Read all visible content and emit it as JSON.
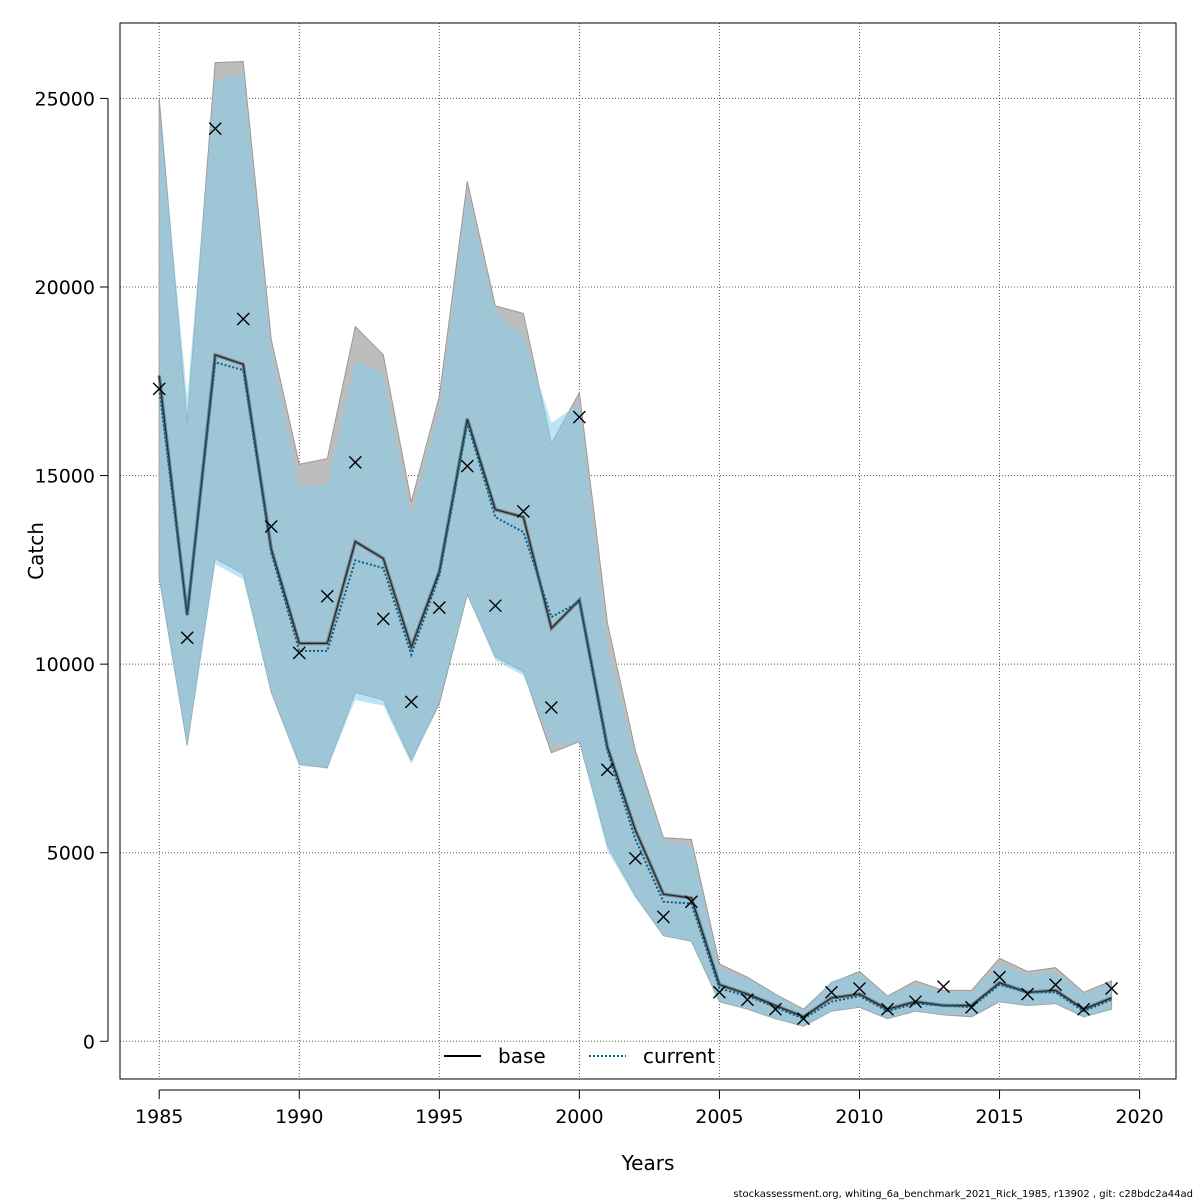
{
  "chart_data": {
    "type": "line",
    "xlabel": "Years",
    "ylabel": "Catch",
    "xlim": [
      1983.6,
      2021.3
    ],
    "ylim": [
      -1000,
      27000
    ],
    "x_ticks": [
      1985,
      1990,
      1995,
      2000,
      2005,
      2010,
      2015,
      2020
    ],
    "y_ticks": [
      0,
      5000,
      10000,
      15000,
      20000,
      25000
    ],
    "x_tick_labels": [
      "1985",
      "1990",
      "1995",
      "2000",
      "2005",
      "2010",
      "2015",
      "2020"
    ],
    "y_tick_labels": [
      "0",
      "5000",
      "10000",
      "15000",
      "20000",
      "25000"
    ],
    "grid": true,
    "legend_position": "bottom",
    "x": [
      1985,
      1986,
      1987,
      1988,
      1989,
      1990,
      1991,
      1992,
      1993,
      1994,
      1995,
      1996,
      1997,
      1998,
      1999,
      2000,
      2001,
      2002,
      2003,
      2004,
      2005,
      2006,
      2007,
      2008,
      2009,
      2010,
      2011,
      2012,
      2013,
      2014,
      2015,
      2016,
      2017,
      2018,
      2019
    ],
    "series": [
      {
        "name": "base",
        "style": "solid",
        "color": "#000000",
        "band_color": "#bdbdbd",
        "values": [
          17650,
          11300,
          18200,
          17950,
          13050,
          10550,
          10550,
          13250,
          12800,
          10450,
          12450,
          16500,
          14100,
          13900,
          10950,
          11700,
          7800,
          5600,
          3900,
          3800,
          1500,
          1250,
          950,
          650,
          1150,
          1250,
          850,
          1050,
          950,
          950,
          1550,
          1300,
          1350,
          850,
          1150
        ],
        "upper": [
          25000,
          16400,
          25950,
          25980,
          18600,
          15300,
          15450,
          18950,
          18200,
          14300,
          17100,
          22800,
          19500,
          19300,
          15850,
          17200,
          11100,
          7700,
          5400,
          5350,
          2050,
          1700,
          1250,
          850,
          1550,
          1850,
          1200,
          1600,
          1350,
          1350,
          2200,
          1850,
          1950,
          1300,
          1600
        ],
        "lower": [
          12300,
          7850,
          12800,
          12400,
          9250,
          7350,
          7250,
          9250,
          9050,
          7450,
          8950,
          11850,
          10200,
          9800,
          7650,
          7950,
          5200,
          3850,
          2800,
          2650,
          1050,
          850,
          600,
          400,
          800,
          900,
          600,
          800,
          700,
          650,
          1050,
          950,
          1000,
          650,
          850
        ]
      },
      {
        "name": "current",
        "style": "dotted",
        "color": "#0a5f8c",
        "band_color": "#87ceeb",
        "values": [
          17300,
          11300,
          18000,
          17800,
          12950,
          10350,
          10350,
          12750,
          12550,
          10250,
          12350,
          16400,
          13900,
          13500,
          11250,
          11650,
          7700,
          5350,
          3700,
          3650,
          1400,
          1200,
          900,
          600,
          1050,
          1200,
          800,
          1000,
          950,
          900,
          1500,
          1300,
          1300,
          800,
          1100
        ],
        "upper": [
          24700,
          17100,
          25500,
          25650,
          18300,
          14700,
          14800,
          18050,
          17700,
          13900,
          16800,
          22500,
          19350,
          18700,
          16400,
          16900,
          10500,
          7500,
          5300,
          5200,
          1950,
          1650,
          1250,
          800,
          1600,
          1800,
          1200,
          1500,
          1300,
          1300,
          2050,
          1750,
          1850,
          1250,
          1550
        ],
        "lower": [
          12300,
          7800,
          12650,
          12250,
          9250,
          7300,
          7250,
          9050,
          8900,
          7350,
          9000,
          11850,
          10100,
          9700,
          7850,
          7950,
          5050,
          3800,
          2800,
          2650,
          1050,
          850,
          600,
          400,
          800,
          900,
          600,
          800,
          700,
          700,
          1050,
          950,
          1000,
          650,
          850
        ]
      }
    ],
    "observed": {
      "marker": "x",
      "x": [
        1985,
        1986,
        1987,
        1988,
        1989,
        1990,
        1991,
        1992,
        1993,
        1994,
        1995,
        1996,
        1997,
        1998,
        1999,
        2000,
        2001,
        2002,
        2003,
        2004,
        2005,
        2006,
        2007,
        2008,
        2009,
        2010,
        2011,
        2012,
        2013,
        2014,
        2015,
        2016,
        2017,
        2018,
        2019
      ],
      "values": [
        17300,
        10700,
        24200,
        19150,
        13650,
        10300,
        11800,
        15350,
        11200,
        9000,
        11500,
        15250,
        11550,
        14050,
        8850,
        16550,
        7200,
        4850,
        3300,
        3700,
        1300,
        1100,
        850,
        600,
        1300,
        1400,
        850,
        1050,
        1450,
        900,
        1700,
        1250,
        1500,
        850,
        1400
      ]
    }
  },
  "legend": {
    "items": [
      {
        "label": "base"
      },
      {
        "label": "current"
      }
    ]
  },
  "footer": {
    "text": "stockassessment.org, whiting_6a_benchmark_2021_Rick_1985, r13902 , git: c28bdc2a44ad"
  }
}
